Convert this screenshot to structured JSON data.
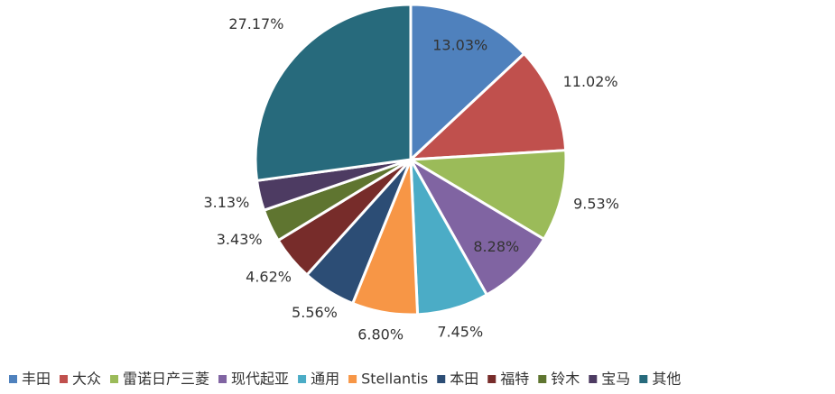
{
  "chart_data": {
    "type": "pie",
    "categories": [
      "丰田",
      "大众",
      "雷诺日产三菱",
      "现代起亚",
      "通用",
      "Stellantis",
      "本田",
      "福特",
      "铃木",
      "宝马",
      "其他"
    ],
    "values": [
      13.03,
      11.02,
      9.53,
      8.28,
      7.45,
      6.8,
      5.56,
      4.62,
      3.43,
      3.13,
      27.17
    ],
    "value_labels": [
      "13.03%",
      "11.02%",
      "9.53%",
      "8.28%",
      "7.45%",
      "6.80%",
      "5.56%",
      "4.62%",
      "3.43%",
      "3.13%",
      "27.17%"
    ],
    "colors": [
      "#4f81bd",
      "#c0504d",
      "#9bbb59",
      "#8064a2",
      "#4bacc6",
      "#f79646",
      "#2c4d75",
      "#772c2a",
      "#5f7530",
      "#4d3b62",
      "#276a7c"
    ],
    "legend": "bottom"
  }
}
